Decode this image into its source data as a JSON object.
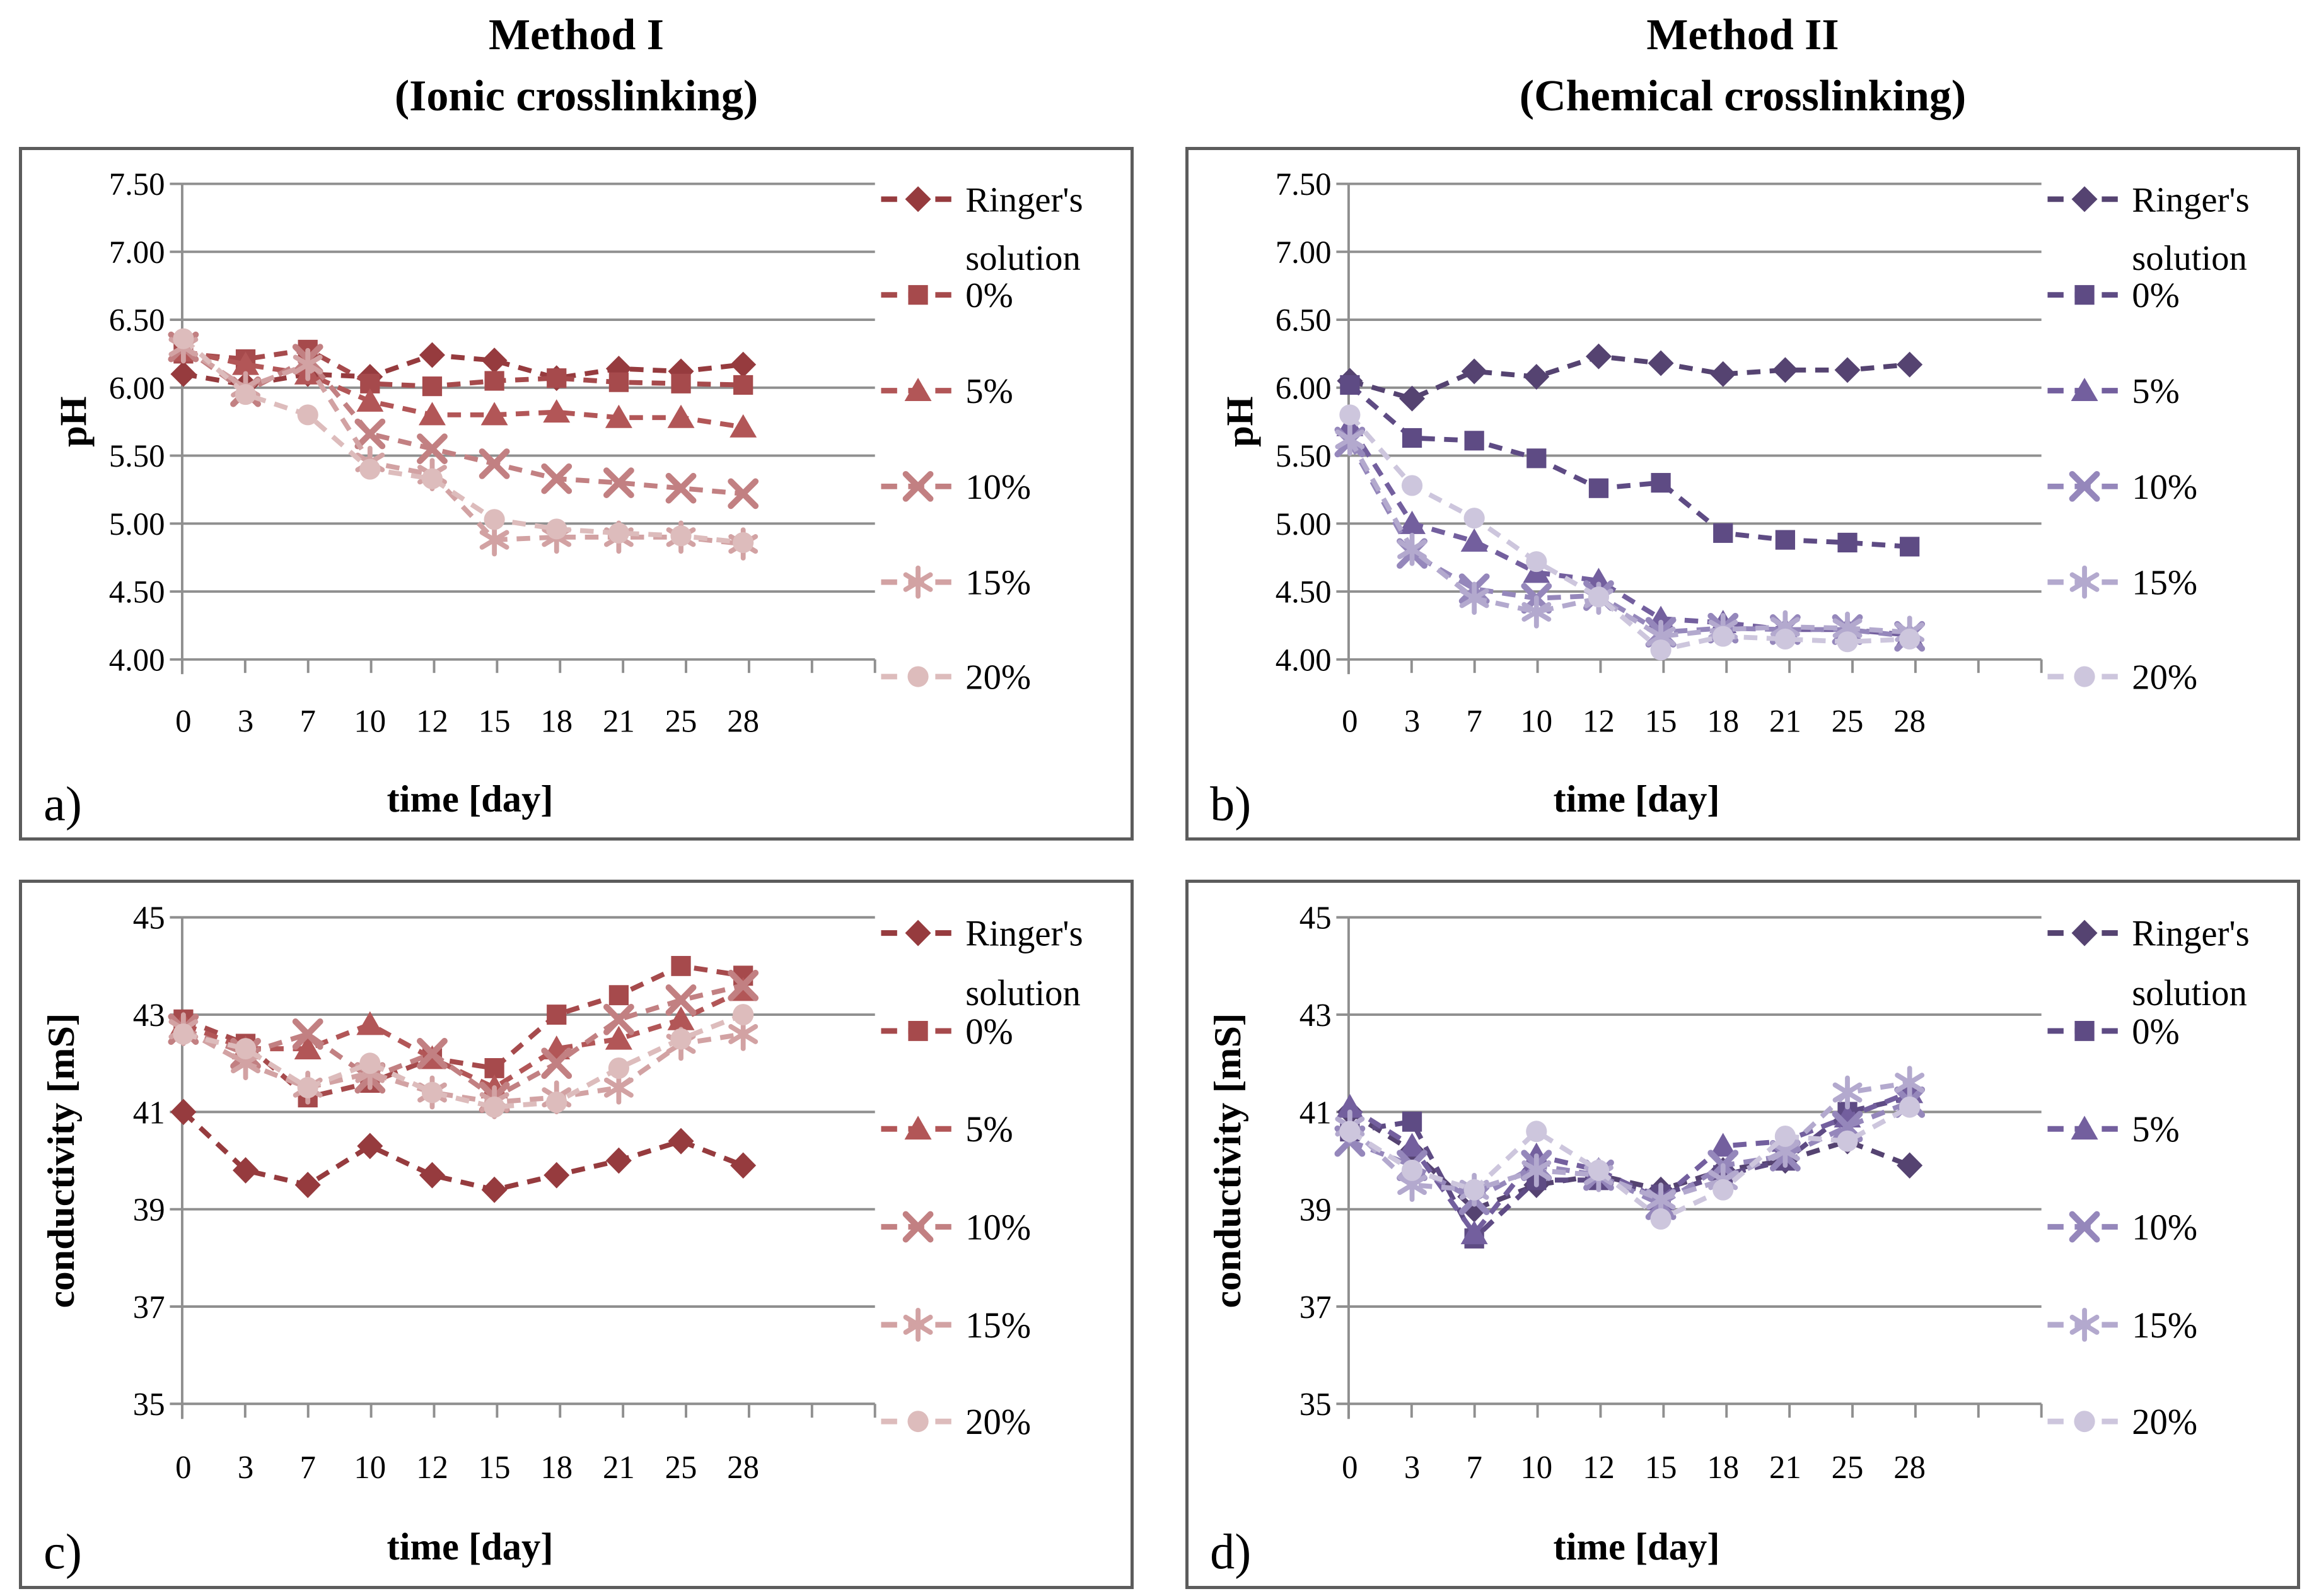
{
  "figure": {
    "columns": [
      {
        "title_line1": "Method I",
        "title_line2": "(Ionic crosslinking)"
      },
      {
        "title_line1": "Method II",
        "title_line2": "(Chemical crosslinking)"
      }
    ]
  },
  "style": {
    "grid_color": "#8f8f8f",
    "axis_color": "#8f8f8f",
    "border_color": "#5c5c5c",
    "text_color": "#000000",
    "background": "#ffffff"
  },
  "chart_data": [
    {
      "panel_letter": "a)",
      "type": "line",
      "column": 0,
      "title": "Method I (Ionic crosslinking)",
      "ylabel": "pH",
      "xlabel": "time [day]",
      "ylim": [
        4.0,
        7.5
      ],
      "grid": true,
      "legend_position": "right",
      "yticks": [
        {
          "v": 7.5,
          "t": "7.50"
        },
        {
          "v": 7.0,
          "t": "7.00"
        },
        {
          "v": 6.5,
          "t": "6.50"
        },
        {
          "v": 6.0,
          "t": "6.00"
        },
        {
          "v": 5.5,
          "t": "5.50"
        },
        {
          "v": 5.0,
          "t": "5.00"
        },
        {
          "v": 4.5,
          "t": "4.50"
        },
        {
          "v": 4.0,
          "t": "4.00"
        }
      ],
      "categories": [
        "0",
        "3",
        "7",
        "10",
        "12",
        "15",
        "18",
        "21",
        "25",
        "28"
      ],
      "series": [
        {
          "name": "Ringer's solution",
          "legend": [
            "Ringer's",
            "solution"
          ],
          "marker": "diamond",
          "color": "#963b3e",
          "values": [
            6.1,
            6.02,
            6.1,
            6.08,
            6.24,
            6.2,
            6.07,
            6.14,
            6.12,
            6.17
          ]
        },
        {
          "name": "0%",
          "legend": [
            "0%"
          ],
          "marker": "square",
          "color": "#a64a4c",
          "values": [
            6.25,
            6.21,
            6.28,
            6.03,
            6.01,
            6.05,
            6.07,
            6.04,
            6.03,
            6.02
          ]
        },
        {
          "name": "5%",
          "legend": [
            "5%"
          ],
          "marker": "triangle",
          "color": "#b25657",
          "values": [
            6.27,
            6.17,
            6.1,
            5.9,
            5.8,
            5.8,
            5.82,
            5.78,
            5.78,
            5.71
          ]
        },
        {
          "name": "10%",
          "legend": [
            "10%"
          ],
          "marker": "x",
          "color": "#c28082",
          "values": [
            6.3,
            5.97,
            6.21,
            5.66,
            5.55,
            5.44,
            5.33,
            5.3,
            5.26,
            5.22
          ]
        },
        {
          "name": "15%",
          "legend": [
            "15%"
          ],
          "marker": "asterisk",
          "color": "#d2a2a3",
          "values": [
            6.3,
            6.0,
            6.17,
            5.45,
            5.36,
            4.88,
            4.9,
            4.9,
            4.9,
            4.85
          ]
        },
        {
          "name": "20%",
          "legend": [
            "20%"
          ],
          "marker": "circle",
          "color": "#ddbcbc",
          "values": [
            6.36,
            5.95,
            5.8,
            5.4,
            5.33,
            5.03,
            4.96,
            4.93,
            4.91,
            4.86
          ]
        }
      ]
    },
    {
      "panel_letter": "b)",
      "type": "line",
      "column": 1,
      "title": "Method II (Chemical crosslinking)",
      "ylabel": "pH",
      "xlabel": "time [day]",
      "ylim": [
        4.0,
        7.5
      ],
      "grid": true,
      "legend_position": "right",
      "yticks": [
        {
          "v": 7.5,
          "t": "7.50"
        },
        {
          "v": 7.0,
          "t": "7.00"
        },
        {
          "v": 6.5,
          "t": "6.50"
        },
        {
          "v": 6.0,
          "t": "6.00"
        },
        {
          "v": 5.5,
          "t": "5.50"
        },
        {
          "v": 5.0,
          "t": "5.00"
        },
        {
          "v": 4.5,
          "t": "4.50"
        },
        {
          "v": 4.0,
          "t": "4.00"
        }
      ],
      "categories": [
        "0",
        "3",
        "7",
        "10",
        "12",
        "15",
        "18",
        "21",
        "25",
        "28"
      ],
      "series": [
        {
          "name": "Ringer's solution",
          "legend": [
            "Ringer's",
            "solution"
          ],
          "marker": "diamond",
          "color": "#554371",
          "values": [
            6.05,
            5.92,
            6.12,
            6.08,
            6.23,
            6.18,
            6.1,
            6.13,
            6.13,
            6.17
          ]
        },
        {
          "name": "0%",
          "legend": [
            "0%"
          ],
          "marker": "square",
          "color": "#5e4b84",
          "values": [
            6.02,
            5.63,
            5.61,
            5.48,
            5.26,
            5.3,
            4.93,
            4.88,
            4.86,
            4.83
          ]
        },
        {
          "name": "5%",
          "legend": [
            "5%"
          ],
          "marker": "triangle",
          "color": "#735f9e",
          "values": [
            5.72,
            5.0,
            4.87,
            4.64,
            4.58,
            4.3,
            4.27,
            4.22,
            4.22,
            4.18
          ]
        },
        {
          "name": "10%",
          "legend": [
            "10%"
          ],
          "marker": "x",
          "color": "#9587bb",
          "values": [
            5.6,
            4.78,
            4.52,
            4.45,
            4.47,
            4.2,
            4.23,
            4.22,
            4.22,
            4.17
          ]
        },
        {
          "name": "15%",
          "legend": [
            "15%"
          ],
          "marker": "asterisk",
          "color": "#b3a9ce",
          "values": [
            5.62,
            4.81,
            4.45,
            4.35,
            4.45,
            4.17,
            4.22,
            4.24,
            4.23,
            4.2
          ]
        },
        {
          "name": "20%",
          "legend": [
            "20%"
          ],
          "marker": "circle",
          "color": "#cdc6dd",
          "values": [
            5.8,
            5.28,
            5.04,
            4.72,
            4.46,
            4.07,
            4.17,
            4.15,
            4.13,
            4.15
          ]
        }
      ]
    },
    {
      "panel_letter": "c)",
      "type": "line",
      "column": 0,
      "title": "Method I (Ionic crosslinking)",
      "ylabel": "conductivity [mS]",
      "xlabel": "time [day]",
      "ylim": [
        35,
        45
      ],
      "grid": true,
      "legend_position": "right",
      "yticks": [
        {
          "v": 45,
          "t": "45"
        },
        {
          "v": 43,
          "t": "43"
        },
        {
          "v": 41,
          "t": "41"
        },
        {
          "v": 39,
          "t": "39"
        },
        {
          "v": 37,
          "t": "37"
        },
        {
          "v": 35,
          "t": "35"
        }
      ],
      "categories": [
        "0",
        "3",
        "7",
        "10",
        "12",
        "15",
        "18",
        "21",
        "25",
        "28"
      ],
      "series": [
        {
          "name": "Ringer's solution",
          "legend": [
            "Ringer's",
            "solution"
          ],
          "marker": "diamond",
          "color": "#963b3e",
          "values": [
            41.0,
            39.8,
            39.5,
            40.3,
            39.7,
            39.4,
            39.7,
            40.0,
            40.4,
            39.9
          ]
        },
        {
          "name": "0%",
          "legend": [
            "0%"
          ],
          "marker": "square",
          "color": "#a64a4c",
          "values": [
            42.9,
            42.4,
            41.3,
            41.6,
            42.1,
            41.9,
            43.0,
            43.4,
            44.0,
            43.8
          ]
        },
        {
          "name": "5%",
          "legend": [
            "5%"
          ],
          "marker": "triangle",
          "color": "#b25657",
          "values": [
            42.8,
            42.3,
            42.3,
            42.8,
            42.1,
            41.5,
            42.3,
            42.5,
            42.9,
            43.5
          ]
        },
        {
          "name": "10%",
          "legend": [
            "10%"
          ],
          "marker": "x",
          "color": "#c28082",
          "values": [
            42.7,
            42.2,
            42.6,
            41.7,
            42.2,
            41.3,
            42.0,
            42.9,
            43.3,
            43.6
          ]
        },
        {
          "name": "15%",
          "legend": [
            "15%"
          ],
          "marker": "asterisk",
          "color": "#d2a2a3",
          "values": [
            42.7,
            42.0,
            41.5,
            41.8,
            41.4,
            41.2,
            41.3,
            41.5,
            42.4,
            42.6
          ]
        },
        {
          "name": "20%",
          "legend": [
            "20%"
          ],
          "marker": "circle",
          "color": "#ddbcbc",
          "values": [
            42.6,
            42.3,
            41.5,
            42.0,
            41.4,
            41.1,
            41.2,
            41.9,
            42.5,
            43.0
          ]
        }
      ]
    },
    {
      "panel_letter": "d)",
      "type": "line",
      "column": 1,
      "title": "Method II (Chemical crosslinking)",
      "ylabel": "conductivity [mS]",
      "xlabel": "time [day]",
      "ylim": [
        35,
        45
      ],
      "grid": true,
      "legend_position": "right",
      "yticks": [
        {
          "v": 45,
          "t": "45"
        },
        {
          "v": 43,
          "t": "43"
        },
        {
          "v": 41,
          "t": "41"
        },
        {
          "v": 39,
          "t": "39"
        },
        {
          "v": 37,
          "t": "37"
        },
        {
          "v": 35,
          "t": "35"
        }
      ],
      "categories": [
        "0",
        "3",
        "7",
        "10",
        "12",
        "15",
        "18",
        "21",
        "25",
        "28"
      ],
      "series": [
        {
          "name": "Ringer's solution",
          "legend": [
            "Ringer's",
            "solution"
          ],
          "marker": "diamond",
          "color": "#554371",
          "values": [
            41.0,
            40.2,
            39.0,
            39.5,
            39.7,
            39.4,
            39.8,
            40.0,
            40.4,
            39.9
          ]
        },
        {
          "name": "0%",
          "legend": [
            "0%"
          ],
          "marker": "square",
          "color": "#5e4b84",
          "values": [
            40.6,
            40.8,
            38.4,
            39.6,
            39.6,
            39.3,
            39.7,
            40.0,
            41.0,
            41.3
          ]
        },
        {
          "name": "5%",
          "legend": [
            "5%"
          ],
          "marker": "triangle",
          "color": "#735f9e",
          "values": [
            41.1,
            40.3,
            38.5,
            40.1,
            39.8,
            39.2,
            40.3,
            40.4,
            40.9,
            41.4
          ]
        },
        {
          "name": "10%",
          "legend": [
            "10%"
          ],
          "marker": "x",
          "color": "#9587bb",
          "values": [
            40.4,
            39.9,
            39.2,
            39.9,
            39.7,
            39.1,
            39.9,
            40.1,
            40.7,
            41.2
          ]
        },
        {
          "name": "15%",
          "legend": [
            "15%"
          ],
          "marker": "asterisk",
          "color": "#b3a9ce",
          "values": [
            40.7,
            39.5,
            39.4,
            39.8,
            39.7,
            39.2,
            39.6,
            40.2,
            41.4,
            41.6
          ]
        },
        {
          "name": "20%",
          "legend": [
            "20%"
          ],
          "marker": "circle",
          "color": "#cdc6dd",
          "values": [
            40.6,
            39.8,
            39.4,
            40.6,
            39.8,
            38.8,
            39.4,
            40.5,
            40.4,
            41.1
          ]
        }
      ]
    }
  ]
}
